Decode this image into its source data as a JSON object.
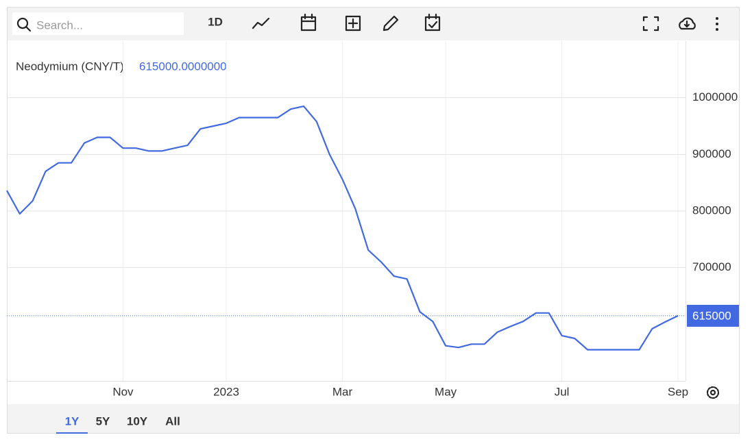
{
  "toolbar": {
    "search_placeholder": "Search...",
    "interval": "1D"
  },
  "range_buttons": [
    "1Y",
    "5Y",
    "10Y",
    "All"
  ],
  "selected_range": "1Y",
  "chart_data": {
    "type": "line",
    "title": "Neodymium (CNY/T)",
    "current_value_label": "615000.0000000",
    "last_value_tag": "615000",
    "categories": [
      null,
      null,
      null,
      null,
      null,
      null,
      null,
      null,
      null,
      "Nov",
      null,
      null,
      null,
      null,
      null,
      null,
      null,
      "2023",
      null,
      null,
      null,
      null,
      null,
      null,
      null,
      null,
      "Mar",
      null,
      null,
      null,
      null,
      null,
      null,
      null,
      "May",
      null,
      null,
      null,
      null,
      null,
      null,
      null,
      null,
      "Jul",
      null,
      null,
      null,
      null,
      null,
      null,
      null,
      null,
      "Sep"
    ],
    "series": [
      {
        "name": "Neodymium (CNY/T)",
        "color": "#4169e1",
        "values": [
          836000,
          795000,
          818000,
          870000,
          885000,
          885000,
          920000,
          930000,
          930000,
          911000,
          911000,
          906000,
          906000,
          911000,
          916000,
          945000,
          950000,
          955000,
          965000,
          965000,
          965000,
          965000,
          980000,
          985000,
          958000,
          900000,
          856000,
          804000,
          731000,
          710000,
          685000,
          680000,
          622000,
          605000,
          562000,
          559000,
          565000,
          565000,
          586000,
          596000,
          605000,
          620000,
          620000,
          580000,
          575000,
          555000,
          555000,
          555000,
          555000,
          555000,
          592000,
          604000,
          615000
        ]
      }
    ],
    "ylim": [
      500000,
      1100000
    ],
    "yticks": [
      700000,
      800000,
      900000,
      1000000
    ],
    "grid": true
  }
}
